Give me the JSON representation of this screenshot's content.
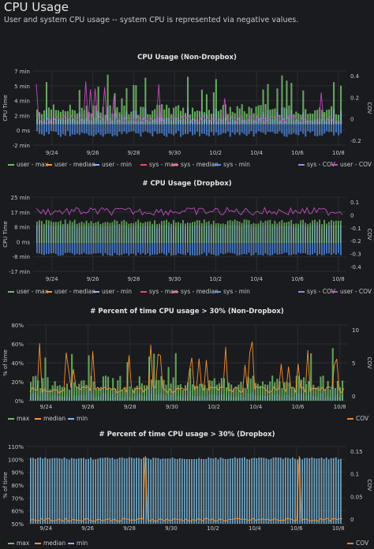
{
  "page": {
    "title": "CPU Usage",
    "description": "User and system CPU usage -- system CPU is represented via negative values."
  },
  "colors": {
    "background": "#1a1b1e",
    "grid": "#2c2d30",
    "green": "#73bf69",
    "orange": "#ff9830",
    "cyan": "#8ab8ff",
    "teal": "#7eb8d9",
    "red": "#f2495c",
    "blue": "#5794f2",
    "purple": "#b877d9",
    "magenta": "#c94fc9"
  },
  "dates": [
    "9/24",
    "9/26",
    "9/28",
    "9/30",
    "10/2",
    "10/4",
    "10/6",
    "10/8"
  ],
  "panels": [
    {
      "title": "CPU Usage (Non-Dropbox)",
      "ylabel": "CPU Time",
      "y2label": "COV",
      "yticks": [
        "7 min",
        "5 min",
        "4 min",
        "2 min",
        "0 ms",
        "-2 min"
      ],
      "y2ticks": [
        "0.4",
        "0.2",
        "0",
        "-0.2"
      ],
      "legend": [
        {
          "label": "user - max",
          "color": "#73bf69"
        },
        {
          "label": "user - median",
          "color": "#ff9830"
        },
        {
          "label": "user - min",
          "color": "#8ab8ff"
        },
        {
          "label": "sys - max",
          "color": "#f2495c"
        },
        {
          "label": "sys - median",
          "color": "#ff7383"
        },
        {
          "label": "sys - min",
          "color": "#5794f2"
        },
        {
          "label": "sys - COV",
          "color": "#8f8fe0"
        },
        {
          "label": "user - COV",
          "color": "#c94fc9"
        }
      ]
    },
    {
      "title": "# CPU Usage (Dropbox)",
      "ylabel": "CPU Time",
      "y2label": "COV",
      "yticks": [
        "25 min",
        "17 min",
        "8 min",
        "0 ms",
        "-8 min",
        "-17 min"
      ],
      "y2ticks": [
        "0.1",
        "0",
        "-0.1",
        "-0.2",
        "-0.3",
        "-0.4"
      ],
      "legend": [
        {
          "label": "user - max",
          "color": "#73bf69"
        },
        {
          "label": "user - median",
          "color": "#ff9830"
        },
        {
          "label": "user - min",
          "color": "#8ab8ff"
        },
        {
          "label": "sys - max",
          "color": "#f2495c"
        },
        {
          "label": "sys - median",
          "color": "#ff7383"
        },
        {
          "label": "sys - min",
          "color": "#5794f2"
        },
        {
          "label": "sys - COV",
          "color": "#8f8fe0"
        },
        {
          "label": "user - COV",
          "color": "#c94fc9"
        }
      ]
    },
    {
      "title": "# Percent of time CPU usage > 30% (Non-Dropbox)",
      "ylabel": "% of time",
      "y2label": "COV",
      "yticks": [
        "80%",
        "60%",
        "40%",
        "20%",
        "0%"
      ],
      "y2ticks": [
        "10",
        "5",
        "0"
      ],
      "legend": [
        {
          "label": "max",
          "color": "#73bf69"
        },
        {
          "label": "median",
          "color": "#ff9830"
        },
        {
          "label": "min",
          "color": "#8ab8ff"
        },
        {
          "label": "COV",
          "color": "#ff7f2a"
        }
      ]
    },
    {
      "title": "# Percent of time CPU usage > 30% (Dropbox)",
      "ylabel": "% of time",
      "y2label": "COV",
      "yticks": [
        "110%",
        "100%",
        "90%",
        "80%",
        "70%",
        "60%",
        "50%"
      ],
      "y2ticks": [
        "0.15",
        "0.1",
        "0.05",
        "0"
      ],
      "legend": [
        {
          "label": "max",
          "color": "#73bf69"
        },
        {
          "label": "median",
          "color": "#ff9830"
        },
        {
          "label": "min",
          "color": "#8ab8ff"
        },
        {
          "label": "COV",
          "color": "#ff7f2a"
        }
      ]
    }
  ],
  "chart_data": [
    {
      "type": "line",
      "title": "CPU Usage (Non-Dropbox)",
      "ylabel": "CPU Time",
      "y2label": "COV",
      "x_range": [
        "9/23",
        "10/8"
      ],
      "ylim_min": [
        -2.5,
        7.5
      ],
      "y2lim": [
        -0.3,
        0.5
      ],
      "series_summary": {
        "user_max_typical_min": 1.5,
        "user_max_peak_min": 6.8,
        "sys_min_typical_min": -1.2,
        "cov_typical": 0.05
      }
    },
    {
      "type": "line",
      "title": "# CPU Usage (Dropbox)",
      "ylabel": "CPU Time",
      "y2label": "COV",
      "x_range": [
        "9/23",
        "10/8"
      ],
      "ylim_min": [
        -17,
        25
      ],
      "y2lim": [
        -0.4,
        0.15
      ],
      "series_summary": {
        "user_max_typical_min": 9,
        "sys_min_typical_min": -2,
        "cov_typical": 0.08
      }
    },
    {
      "type": "line",
      "title": "# Percent of time CPU usage > 30% (Non-Dropbox)",
      "ylabel": "% of time",
      "y2label": "COV",
      "x_range": [
        "9/23",
        "10/8"
      ],
      "ylim_pct": [
        0,
        85
      ],
      "y2lim": [
        0,
        12
      ],
      "series_summary": {
        "max_typical_pct": 25,
        "max_peak_pct": 62,
        "median_typical_pct": 5
      }
    },
    {
      "type": "line",
      "title": "# Percent of time CPU usage > 30% (Dropbox)",
      "ylabel": "% of time",
      "y2label": "COV",
      "x_range": [
        "9/23",
        "10/8"
      ],
      "ylim_pct": [
        50,
        112
      ],
      "y2lim": [
        0,
        0.16
      ],
      "series_summary": {
        "max_typical_pct": 96,
        "min_typical_pct": 93,
        "median_typical_pct": 53
      }
    }
  ]
}
